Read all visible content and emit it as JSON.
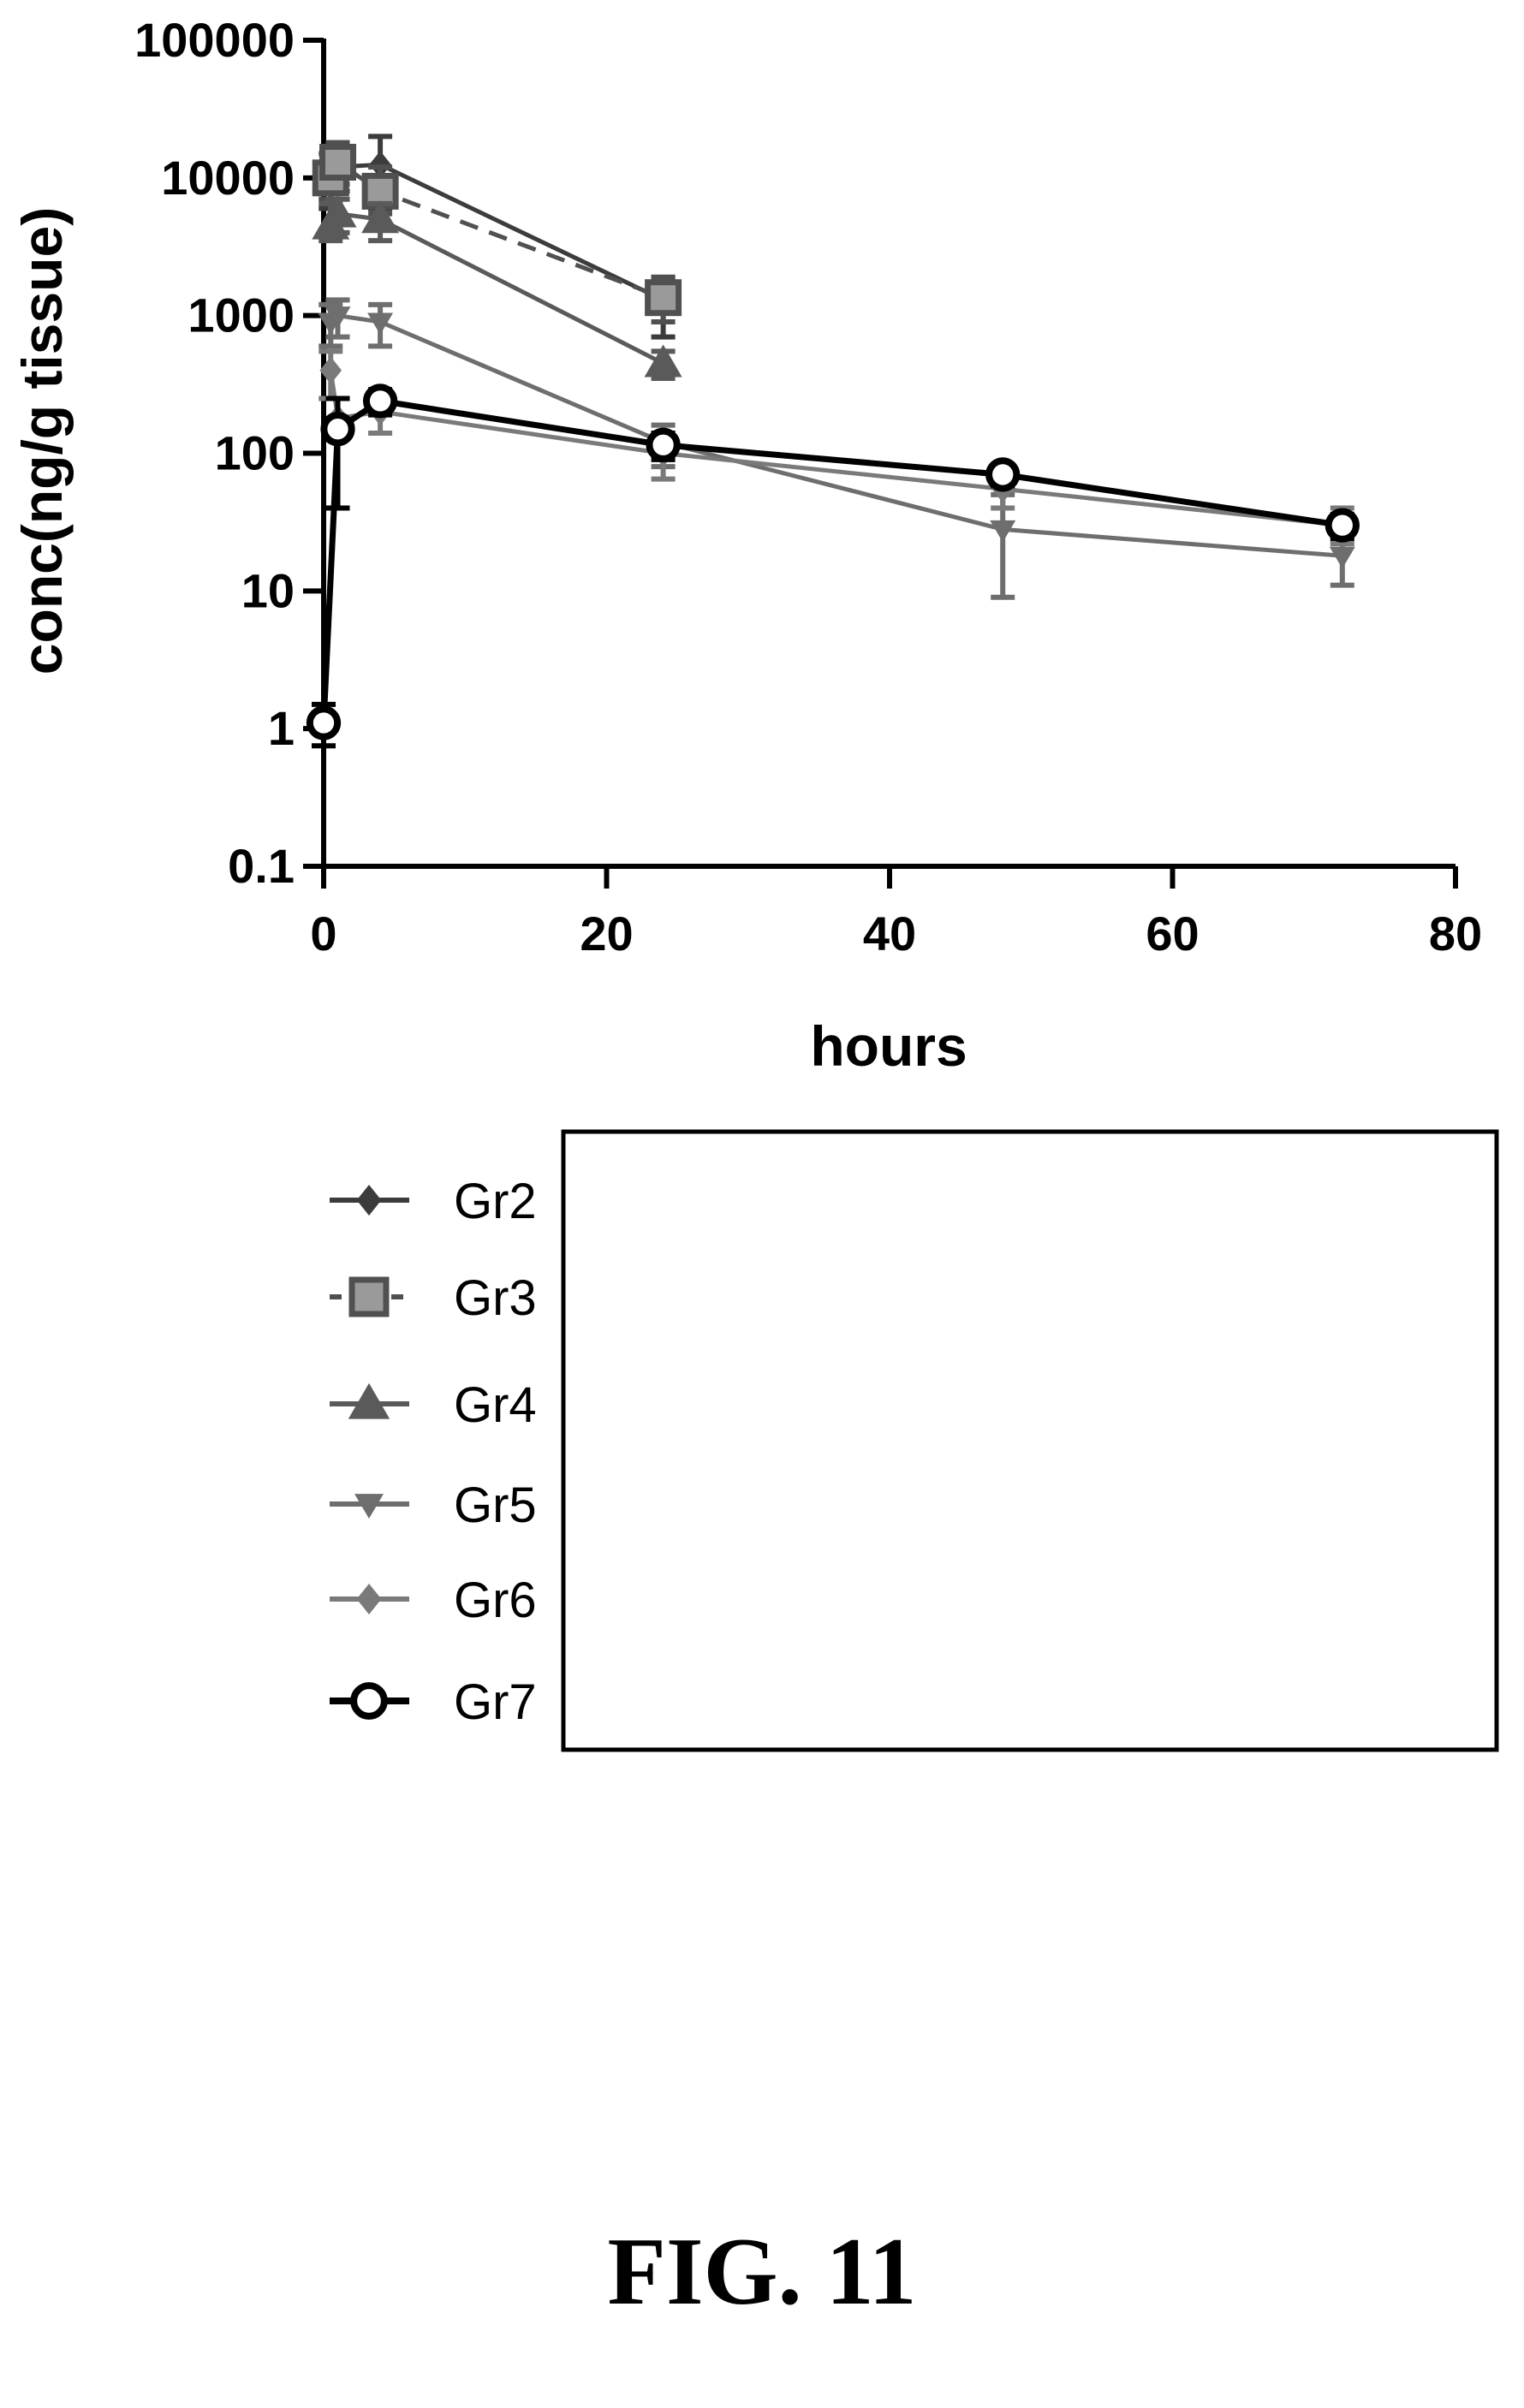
{
  "figure_label": "FIG. 11",
  "chart_data": {
    "type": "line",
    "xlabel": "hours",
    "ylabel": "conc(ng/g tissue)",
    "xlim": [
      0,
      80
    ],
    "ylim": [
      0.1,
      100000
    ],
    "y_scale": "log",
    "x_ticks": [
      "0",
      "20",
      "40",
      "60",
      "80"
    ],
    "y_ticks": [
      "0.1",
      "1",
      "10",
      "100",
      "1000",
      "10000",
      "100000"
    ],
    "grid": false,
    "legend_placement": "below",
    "series": [
      {
        "name": "Gr2",
        "color": "#3c3c3c",
        "marker": "diamond",
        "dash": false,
        "x": [
          0.5,
          1,
          4,
          24
        ],
        "y": [
          9000,
          12000,
          12500,
          1300
        ],
        "err": [
          [
            6000,
            12000
          ],
          [
            8000,
            18000
          ],
          [
            6000,
            20000
          ],
          [
            700,
            1900
          ]
        ]
      },
      {
        "name": "Gr3",
        "color": "#505050",
        "marker": "square",
        "dash": true,
        "x": [
          0.5,
          1,
          4,
          24
        ],
        "y": [
          10000,
          13000,
          8000,
          1350
        ],
        "err": [
          [
            7000,
            15000
          ],
          [
            9000,
            18000
          ],
          [
            5500,
            12000
          ],
          [
            900,
            1900
          ]
        ]
      },
      {
        "name": "Gr4",
        "color": "#5a5a5a",
        "marker": "triangle-up",
        "dash": false,
        "x": [
          0.5,
          1,
          4,
          24
        ],
        "y": [
          4500,
          5500,
          5000,
          450
        ],
        "err": [
          [
            3500,
            6500
          ],
          [
            4000,
            7000
          ],
          [
            3500,
            6500
          ],
          [
            350,
            550
          ]
        ]
      },
      {
        "name": "Gr5",
        "color": "#6e6e6e",
        "marker": "triangle-down",
        "dash": false,
        "x": [
          0.5,
          1,
          4,
          24,
          48,
          72
        ],
        "y": [
          900,
          1000,
          900,
          120,
          28,
          18
        ],
        "err": [
          [
            600,
            1200
          ],
          [
            700,
            1300
          ],
          [
            600,
            1200
          ],
          [
            80,
            160
          ],
          [
            9,
            50
          ],
          [
            11,
            26
          ]
        ]
      },
      {
        "name": "Gr6",
        "color": "#7a7a7a",
        "marker": "diamond",
        "dash": false,
        "x": [
          0.5,
          1,
          4,
          24,
          48,
          72
        ],
        "y": [
          400,
          180,
          200,
          100,
          55,
          30
        ],
        "err": [
          [
            250,
            550
          ],
          [
            130,
            250
          ],
          [
            140,
            260
          ],
          [
            65,
            140
          ],
          [
            40,
            70
          ],
          [
            22,
            40
          ]
        ]
      },
      {
        "name": "Gr7",
        "color": "#000000",
        "marker": "circle-open",
        "dash": false,
        "x": [
          0,
          1,
          4,
          24,
          48,
          72
        ],
        "y": [
          1.1,
          150,
          240,
          115,
          70,
          30
        ],
        "err": [
          [
            0.75,
            1.5
          ],
          [
            40,
            250
          ],
          [
            190,
            290
          ],
          [
            90,
            140
          ],
          [
            58,
            82
          ],
          [
            24,
            36
          ]
        ]
      }
    ]
  }
}
